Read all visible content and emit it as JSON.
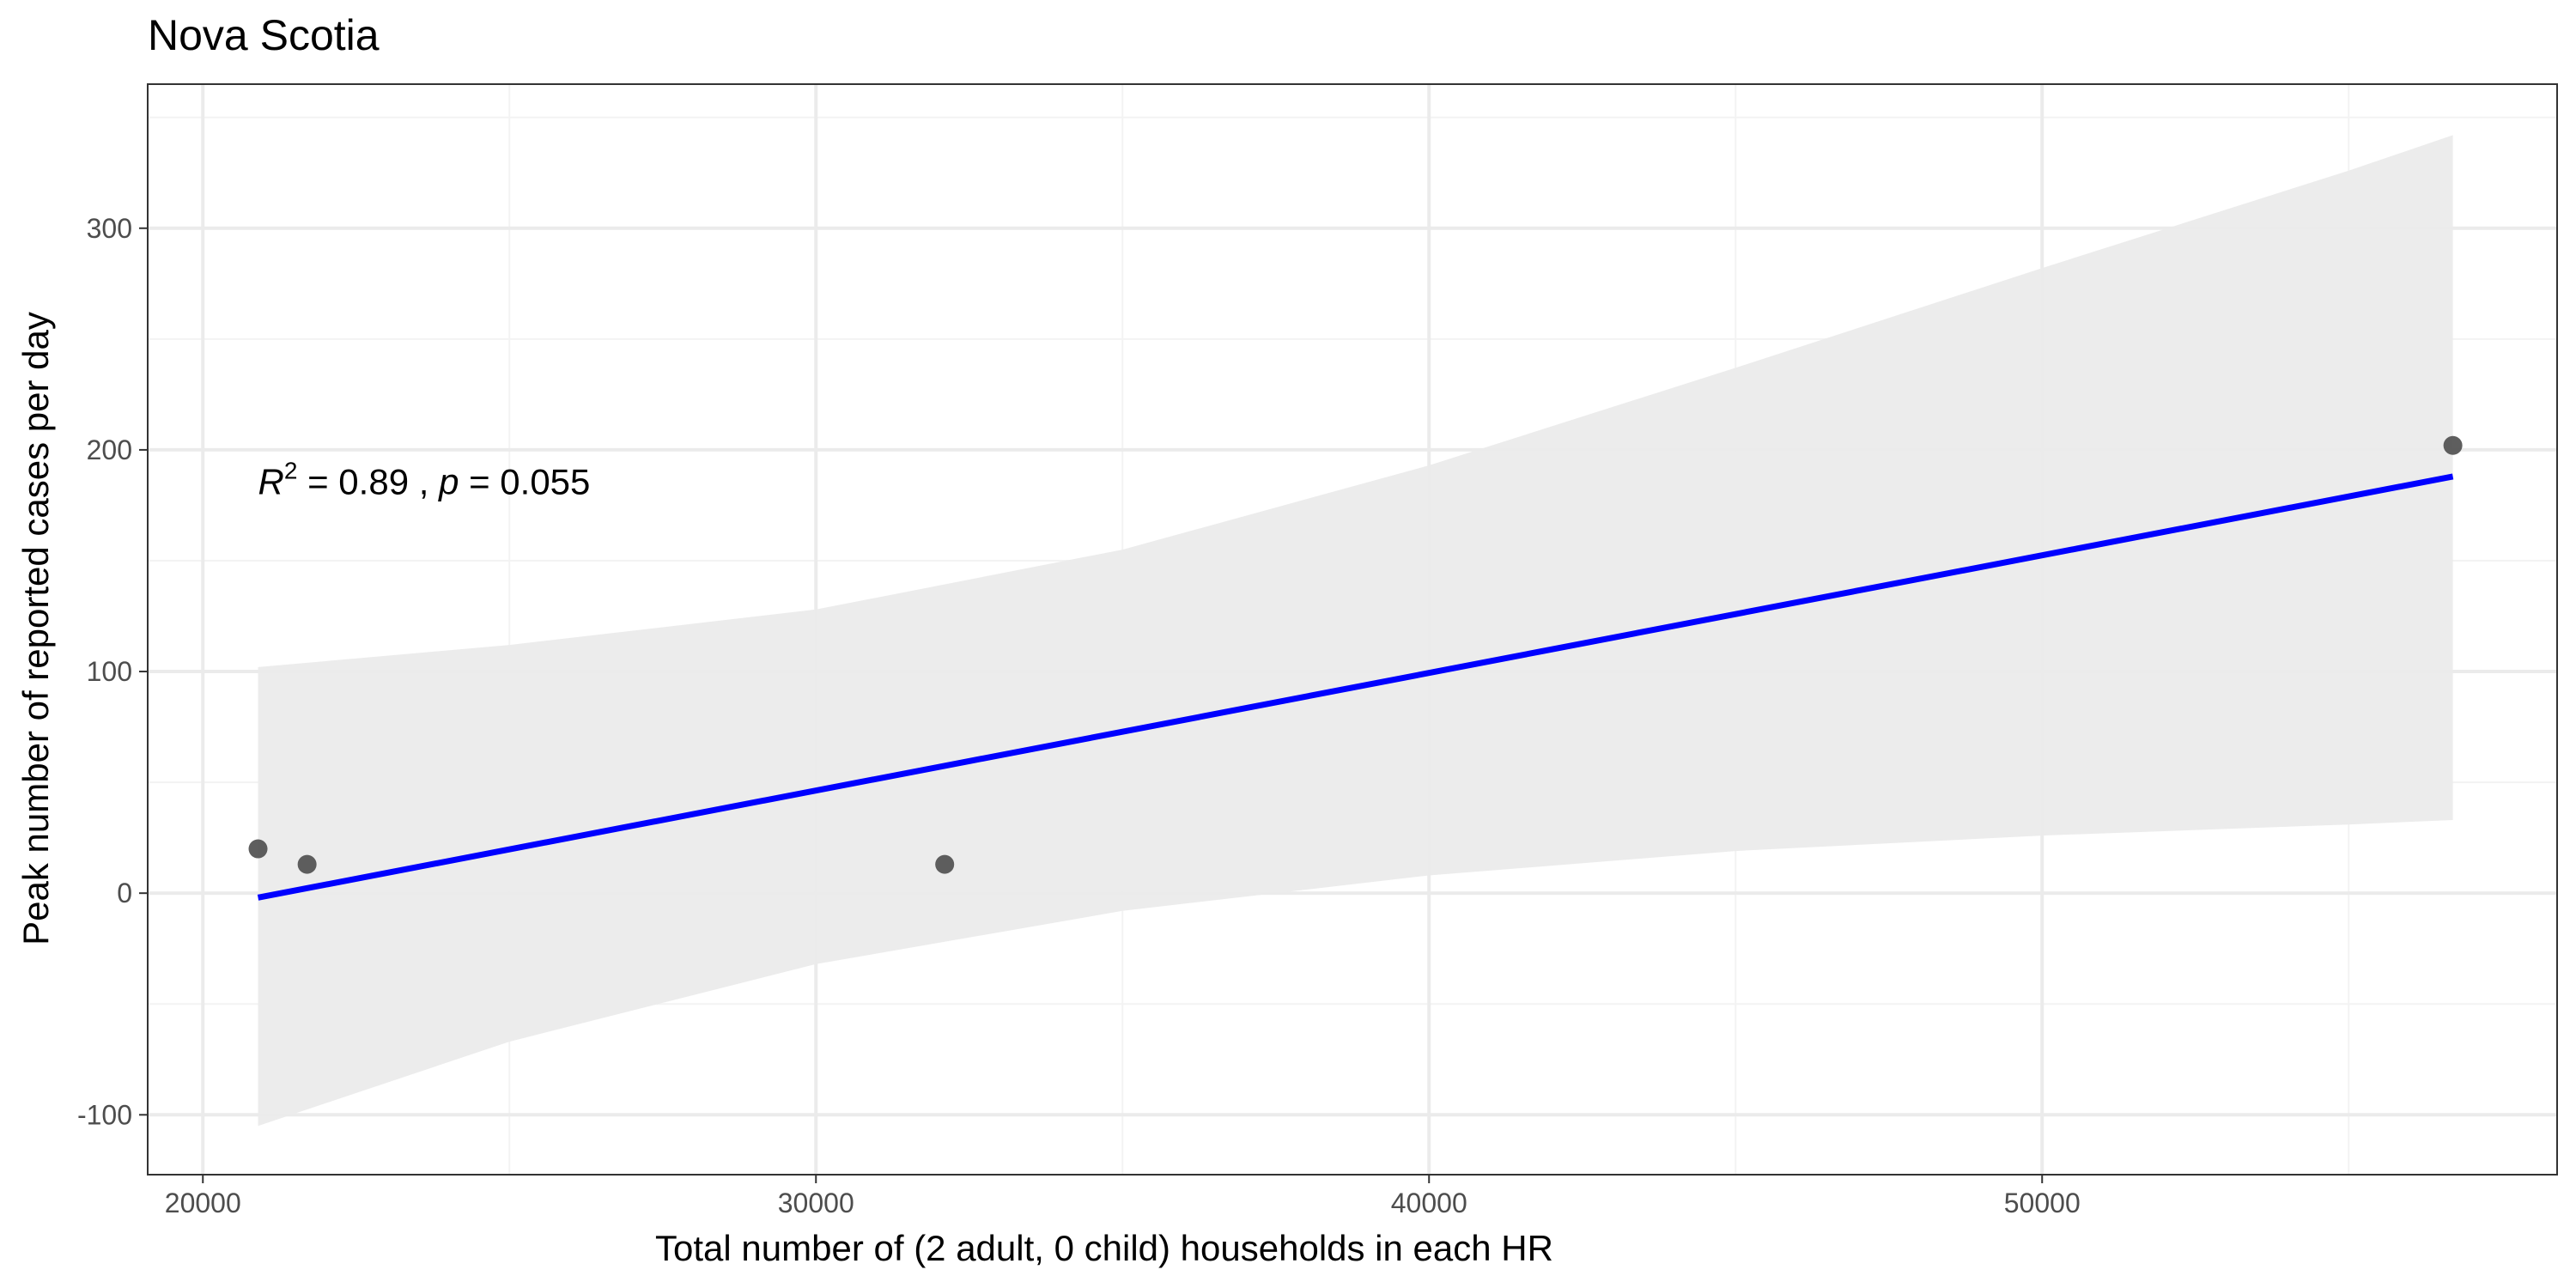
{
  "chart_data": {
    "type": "scatter",
    "title": "Nova Scotia",
    "xlabel": "Total number of (2 adult, 0 child) households in each HR",
    "ylabel": "Peak number of reported cases per day",
    "xlim": [
      19100,
      58400
    ],
    "ylim": [
      -127,
      365
    ],
    "x_ticks": [
      20000,
      30000,
      40000,
      50000
    ],
    "y_ticks": [
      -100,
      0,
      100,
      200,
      300
    ],
    "x_tick_labels": [
      "20000",
      "30000",
      "40000",
      "50000"
    ],
    "y_tick_labels": [
      "-100",
      "0",
      "100",
      "200",
      "300"
    ],
    "grid": true,
    "points": [
      {
        "x": 20900,
        "y": 20
      },
      {
        "x": 21700,
        "y": 13
      },
      {
        "x": 32100,
        "y": 13
      },
      {
        "x": 56700,
        "y": 202
      }
    ],
    "fit_line": {
      "x": [
        20900,
        56700
      ],
      "y": [
        -2,
        188
      ],
      "color": "#0000ff"
    },
    "confidence_band": {
      "x": [
        20900,
        25000,
        30000,
        35000,
        40000,
        45000,
        50000,
        55000,
        56700
      ],
      "lower": [
        -105,
        -67,
        -32,
        -8,
        8,
        19,
        26,
        31,
        33
      ],
      "upper": [
        102,
        112,
        128,
        155,
        193,
        237,
        282,
        326,
        342
      ],
      "color": "#ebebeb"
    },
    "annotation": {
      "r_symbol": "R",
      "r_superscript": "2",
      "r_value": " = 0.89 , ",
      "p_symbol": "p",
      "p_value": " = 0.055",
      "x": 20900,
      "y": 180
    },
    "colors": {
      "point": "#555555",
      "fit_line": "#0000ff",
      "band": "#ebebeb",
      "grid_major": "#ebebeb",
      "grid_minor": "#f3f3f3",
      "border": "#333333"
    }
  }
}
